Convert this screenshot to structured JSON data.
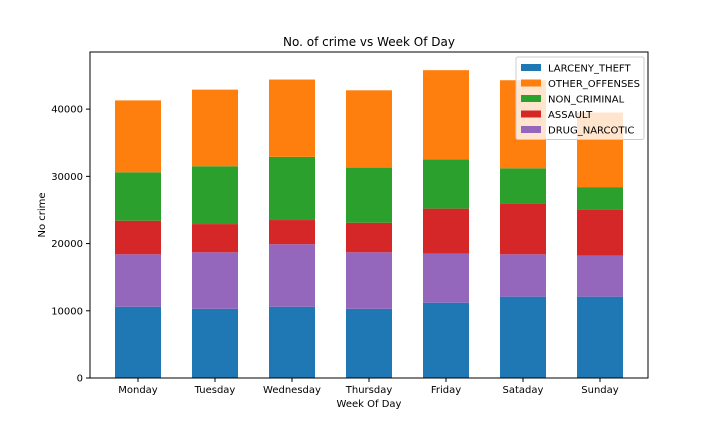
{
  "chart_data": {
    "type": "bar",
    "stacked": true,
    "title": "No. of crime vs Week Of Day",
    "xlabel": "Week Of Day",
    "ylabel": "No crime",
    "ylim": [
      0,
      48500
    ],
    "yticks": [
      0,
      10000,
      20000,
      30000,
      40000
    ],
    "grid": false,
    "legend_position": "top-right",
    "categories": [
      "Monday",
      "Tuesday",
      "Wednesday",
      "Thursday",
      "Friday",
      "Sataday",
      "Sunday"
    ],
    "series": [
      {
        "name": "LARCENY_THEFT",
        "color": "#1f77b4",
        "values": [
          10600,
          10300,
          10600,
          10300,
          11200,
          12100,
          12100
        ]
      },
      {
        "name": "DRUG_NARCOTIC",
        "color": "#9467bd",
        "values": [
          7800,
          8400,
          9300,
          8400,
          7300,
          6300,
          6100
        ]
      },
      {
        "name": "ASSAULT",
        "color": "#d62728",
        "values": [
          5000,
          4200,
          3600,
          4400,
          6700,
          7600,
          6800
        ]
      },
      {
        "name": "NON_CRIMINAL",
        "color": "#2ca02c",
        "values": [
          7200,
          8600,
          9400,
          8200,
          7300,
          5200,
          3400
        ]
      },
      {
        "name": "OTHER_OFFENSES",
        "color": "#ff7f0e",
        "values": [
          10700,
          11400,
          11500,
          11500,
          13300,
          13100,
          11100
        ]
      }
    ],
    "legend_order": [
      "LARCENY_THEFT",
      "OTHER_OFFENSES",
      "NON_CRIMINAL",
      "ASSAULT",
      "DRUG_NARCOTIC"
    ]
  }
}
